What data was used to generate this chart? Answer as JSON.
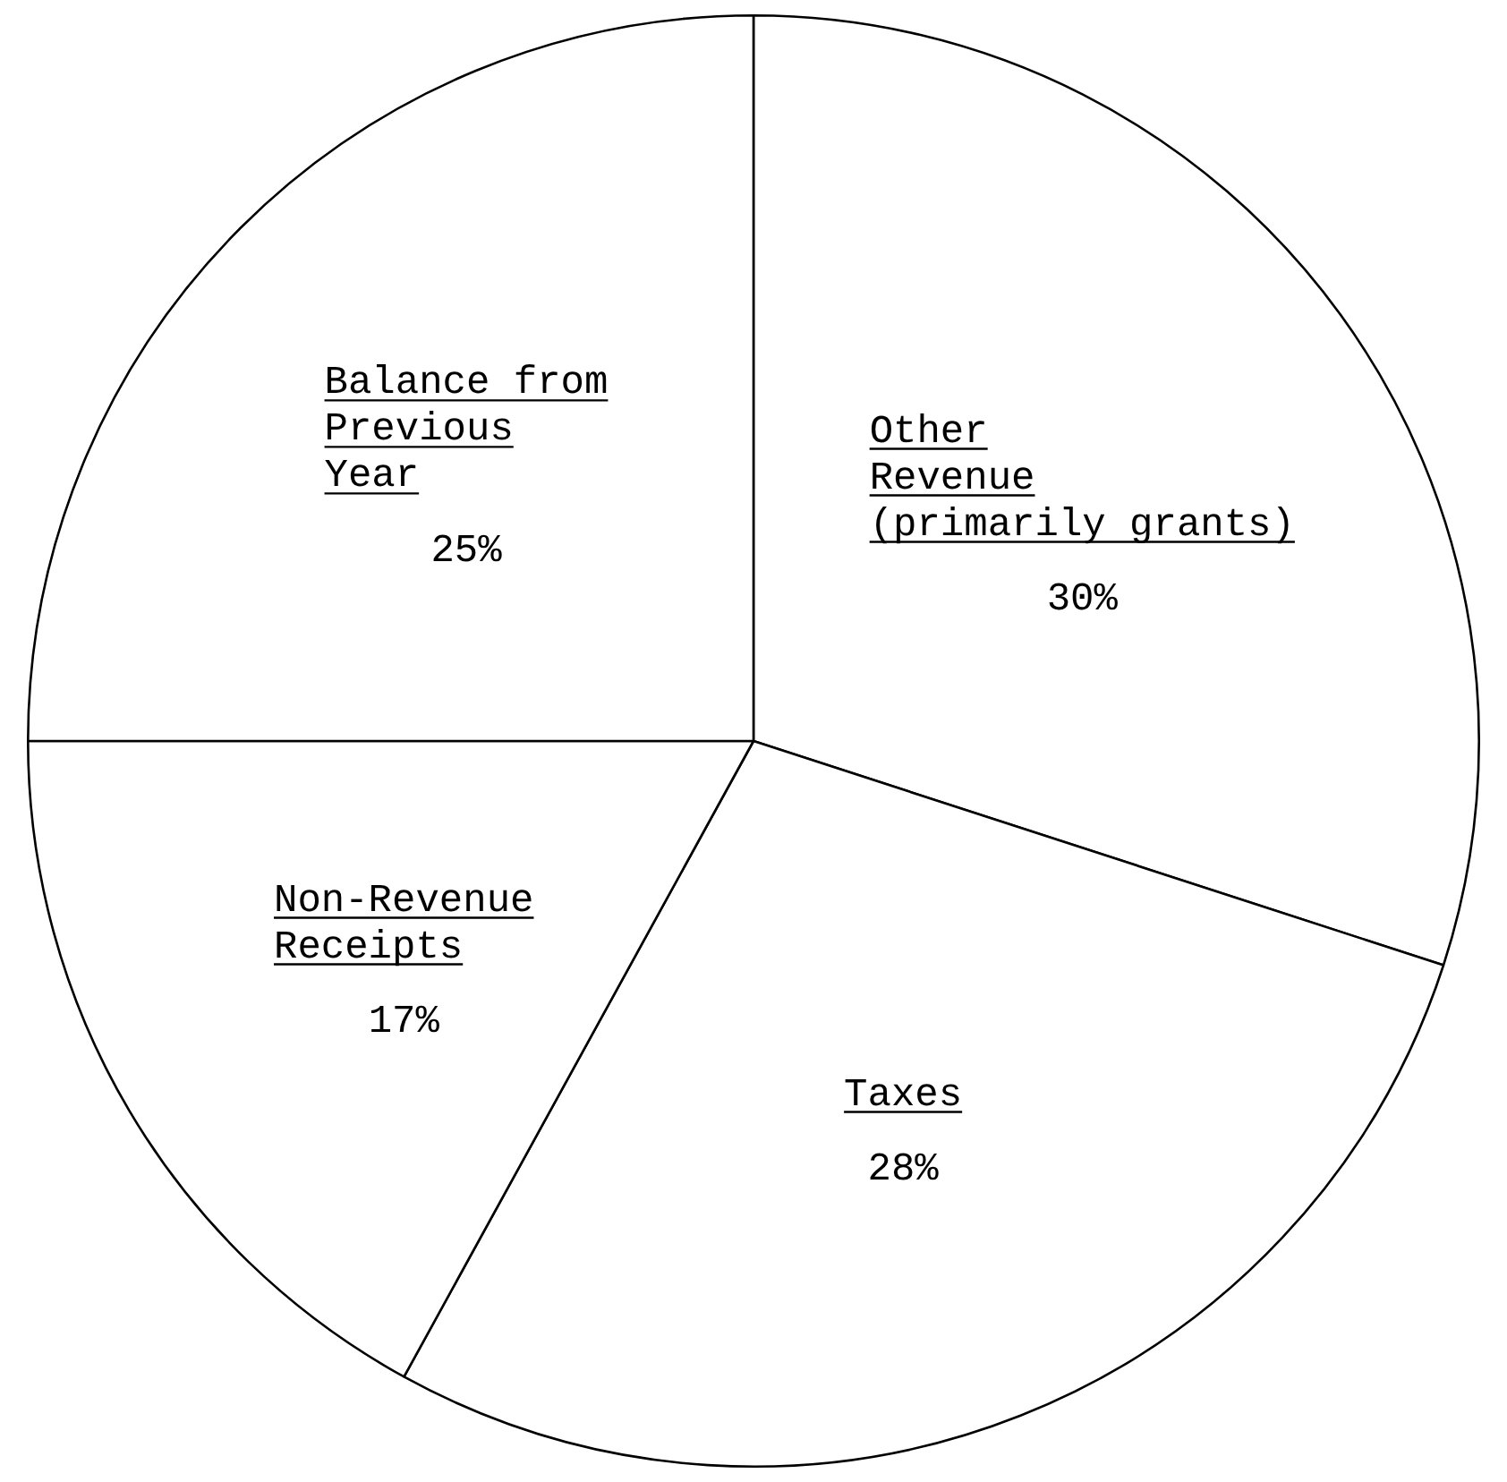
{
  "chart_data": {
    "type": "pie",
    "categories": [
      "Other Revenue (primarily grants)",
      "Taxes",
      "Non-Revenue Receipts",
      "Balance from Previous Year"
    ],
    "values": [
      30,
      28,
      17,
      25
    ],
    "value_labels": [
      "30%",
      "28%",
      "17%",
      "25%"
    ],
    "colors": [
      "#ffffff",
      "#ffffff",
      "#ffffff",
      "#ffffff"
    ],
    "legend": false
  }
}
